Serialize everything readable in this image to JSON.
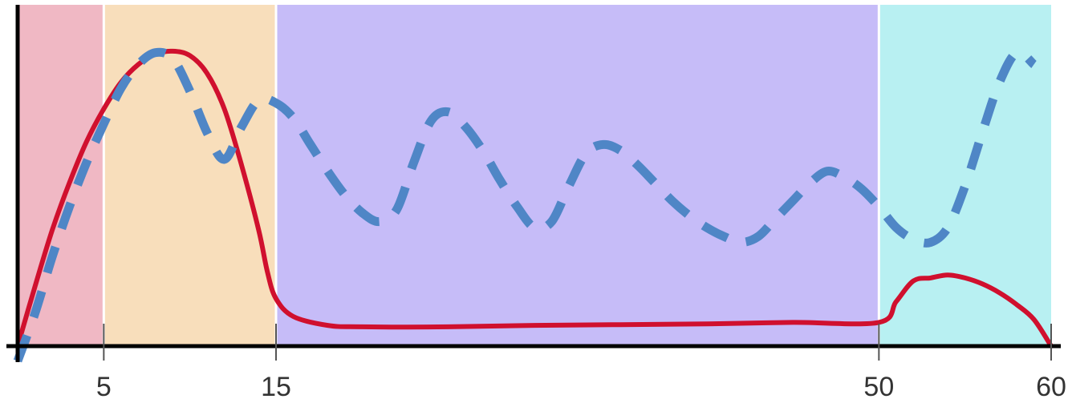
{
  "chart_data": {
    "type": "line",
    "title": "",
    "xlabel": "",
    "ylabel": "",
    "xlim": [
      0,
      60
    ],
    "ylim": [
      0,
      100
    ],
    "grid": false,
    "x_ticks": [
      {
        "value": 5,
        "label": "5"
      },
      {
        "value": 15,
        "label": "15"
      },
      {
        "value": 50,
        "label": "50"
      },
      {
        "value": 60,
        "label": "60"
      }
    ],
    "bands": [
      {
        "from": 0,
        "to": 5,
        "color": "#f0b8c4"
      },
      {
        "from": 5,
        "to": 15,
        "color": "#f8debb"
      },
      {
        "from": 15,
        "to": 50,
        "color": "#c6bcf8"
      },
      {
        "from": 50,
        "to": 60,
        "color": "#b8f0f2"
      }
    ],
    "series": [
      {
        "style": "solid",
        "color": "#d0102e",
        "points": [
          [
            0,
            0
          ],
          [
            1,
            20
          ],
          [
            2,
            39
          ],
          [
            3,
            55
          ],
          [
            4,
            69
          ],
          [
            5,
            80
          ],
          [
            6,
            89
          ],
          [
            7,
            95
          ],
          [
            8,
            98.5
          ],
          [
            9,
            99.5
          ],
          [
            10,
            98
          ],
          [
            11,
            92
          ],
          [
            12,
            80
          ],
          [
            13,
            61
          ],
          [
            14,
            39
          ],
          [
            14.5,
            25
          ],
          [
            15,
            16
          ],
          [
            16,
            10
          ],
          [
            18,
            7
          ],
          [
            20,
            6.5
          ],
          [
            25,
            6.5
          ],
          [
            30,
            7
          ],
          [
            40,
            7.5
          ],
          [
            45,
            8
          ],
          [
            50,
            8
          ],
          [
            51,
            15
          ],
          [
            52,
            22
          ],
          [
            53,
            23
          ],
          [
            54,
            24
          ],
          [
            55,
            23
          ],
          [
            56,
            21
          ],
          [
            57,
            18
          ],
          [
            58,
            14
          ],
          [
            59,
            9
          ],
          [
            60,
            0
          ]
        ]
      },
      {
        "style": "dashed",
        "color": "#4f86c6",
        "points": [
          [
            0,
            -5
          ],
          [
            1,
            11
          ],
          [
            2,
            30
          ],
          [
            3,
            47
          ],
          [
            4,
            62
          ],
          [
            5,
            75
          ],
          [
            6,
            87
          ],
          [
            7,
            95
          ],
          [
            8,
            99
          ],
          [
            9,
            97
          ],
          [
            10,
            86
          ],
          [
            11,
            72
          ],
          [
            12,
            63
          ],
          [
            13,
            74
          ],
          [
            14,
            83
          ],
          [
            15,
            82
          ],
          [
            16,
            77
          ],
          [
            17,
            68
          ],
          [
            18,
            59
          ],
          [
            19,
            51
          ],
          [
            20,
            45
          ],
          [
            21,
            42
          ],
          [
            22,
            46
          ],
          [
            23,
            62
          ],
          [
            24,
            76
          ],
          [
            25,
            79
          ],
          [
            26,
            74
          ],
          [
            27,
            66
          ],
          [
            28,
            56
          ],
          [
            29,
            47
          ],
          [
            30,
            40
          ],
          [
            31,
            42
          ],
          [
            32,
            54
          ],
          [
            33,
            65
          ],
          [
            34,
            68
          ],
          [
            35,
            66
          ],
          [
            36,
            61
          ],
          [
            37,
            55
          ],
          [
            38,
            49
          ],
          [
            39,
            44
          ],
          [
            40,
            40
          ],
          [
            41,
            37
          ],
          [
            42,
            35
          ],
          [
            43,
            37
          ],
          [
            44,
            43
          ],
          [
            45,
            49
          ],
          [
            46,
            55
          ],
          [
            47,
            59
          ],
          [
            48,
            57
          ],
          [
            49,
            53
          ],
          [
            50,
            47
          ],
          [
            51,
            40
          ],
          [
            52,
            36
          ],
          [
            53,
            35
          ],
          [
            54,
            40
          ],
          [
            55,
            54
          ],
          [
            56,
            72
          ],
          [
            57,
            89
          ],
          [
            58,
            99
          ],
          [
            59,
            95
          ]
        ]
      }
    ]
  }
}
